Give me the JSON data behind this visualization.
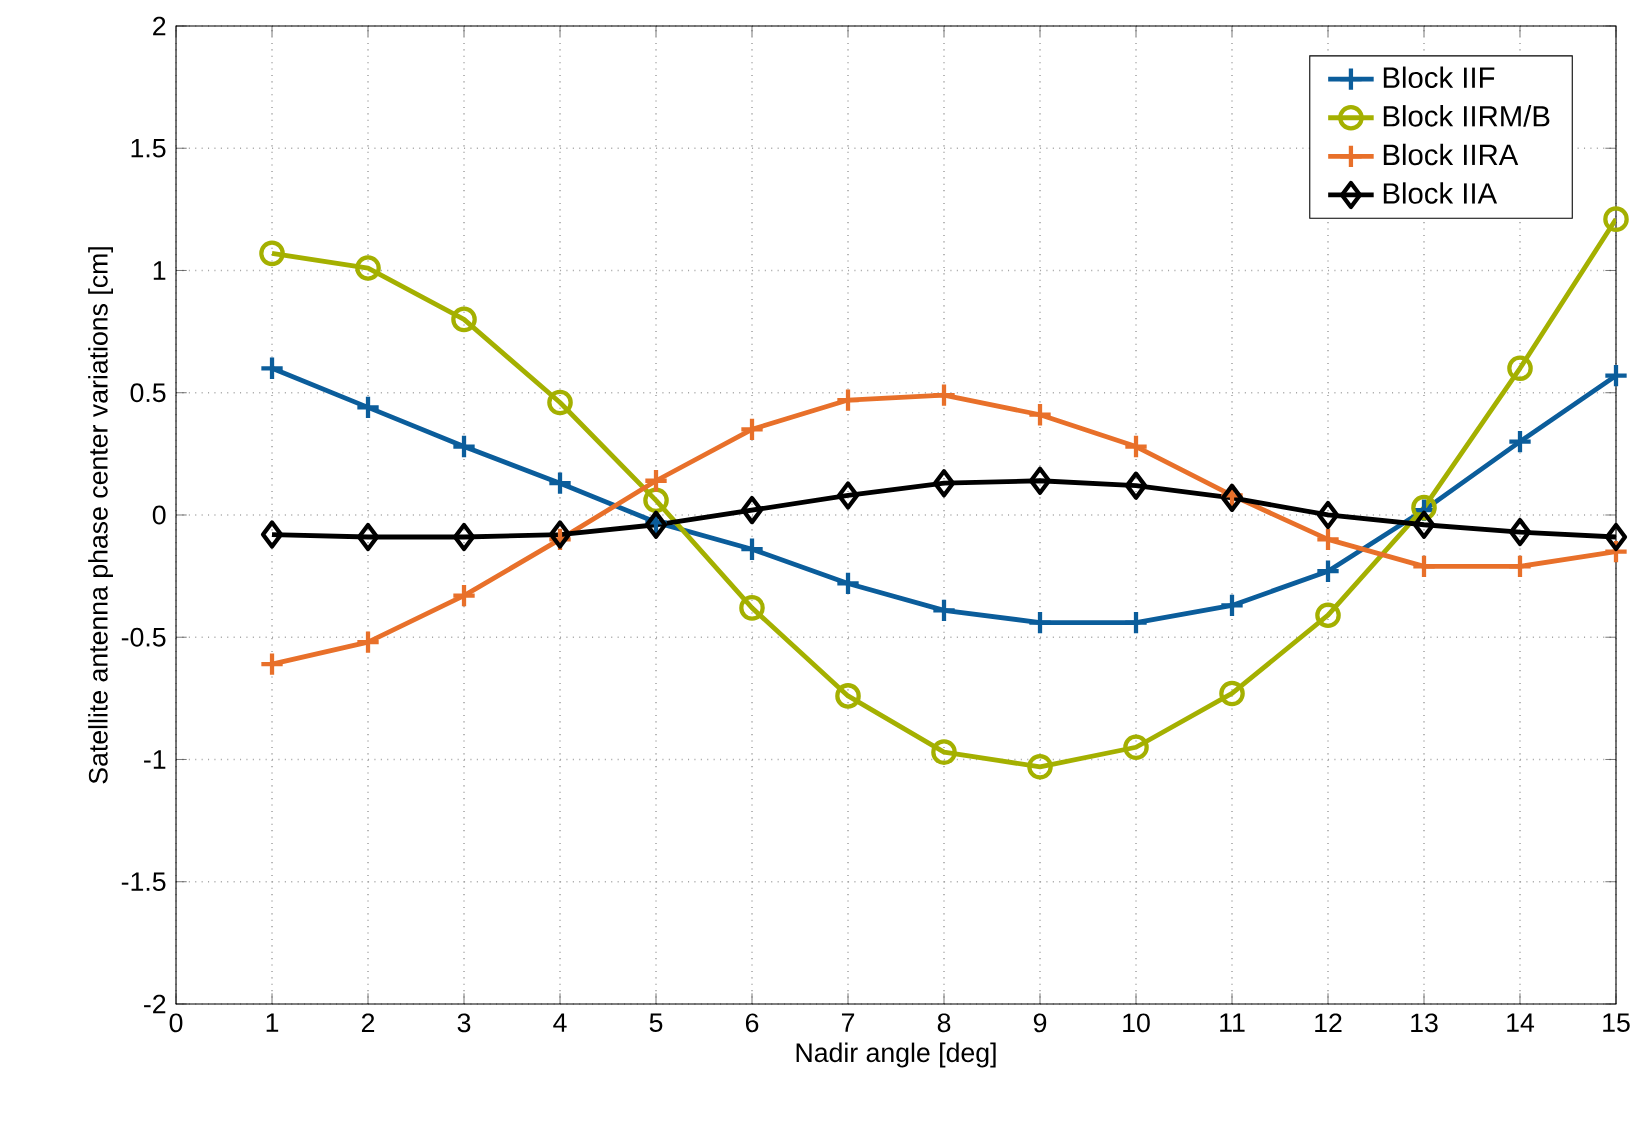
{
  "chart_data": {
    "type": "line",
    "xlabel": "Nadir angle [deg]",
    "ylabel": "Satellite antenna phase center variations [cm]",
    "x": [
      1,
      2,
      3,
      4,
      5,
      6,
      7,
      8,
      9,
      10,
      11,
      12,
      13,
      14,
      15
    ],
    "series": [
      {
        "name": "Block IIF",
        "color": "#0b5d9b",
        "marker": "cross",
        "values": [
          0.6,
          0.44,
          0.28,
          0.13,
          -0.03,
          -0.14,
          -0.28,
          -0.39,
          -0.44,
          -0.44,
          -0.37,
          -0.23,
          0.02,
          0.3,
          0.57
        ]
      },
      {
        "name": "Block IIRM/B",
        "color": "#a4b000",
        "marker": "circle",
        "values": [
          1.07,
          1.01,
          0.8,
          0.46,
          0.06,
          -0.38,
          -0.74,
          -0.97,
          -1.03,
          -0.95,
          -0.73,
          -0.41,
          0.03,
          0.6,
          1.21
        ]
      },
      {
        "name": "Block IIRA",
        "color": "#e8702a",
        "marker": "cross",
        "values": [
          -0.61,
          -0.52,
          -0.33,
          -0.1,
          0.14,
          0.35,
          0.47,
          0.49,
          0.41,
          0.28,
          0.08,
          -0.1,
          -0.21,
          -0.21,
          -0.15
        ]
      },
      {
        "name": "Block IIA",
        "color": "#000000",
        "marker": "diamond",
        "values": [
          -0.08,
          -0.09,
          -0.09,
          -0.08,
          -0.04,
          0.02,
          0.08,
          0.13,
          0.14,
          0.12,
          0.07,
          0.0,
          -0.04,
          -0.07,
          -0.09
        ]
      }
    ],
    "xlim": [
      0,
      15
    ],
    "ylim": [
      -2,
      2
    ],
    "xticks": [
      0,
      1,
      2,
      3,
      4,
      5,
      6,
      7,
      8,
      9,
      10,
      11,
      12,
      13,
      14,
      15
    ],
    "yticks": [
      -2,
      -1.5,
      -1,
      -0.5,
      0,
      0.5,
      1,
      1.5,
      2
    ],
    "grid": true,
    "legend": "top right",
    "line_style": "solid"
  }
}
